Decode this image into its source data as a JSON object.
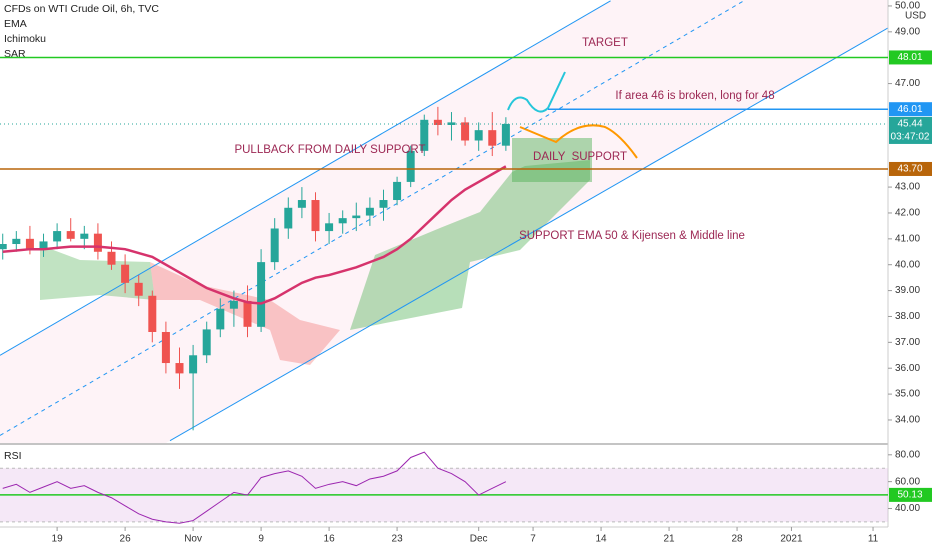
{
  "chart_data": [
    {
      "type": "candlestick",
      "title": "CFDs on WTI Crude Oil, 6h, TVC",
      "indicators": [
        "Ichimoku",
        "SAR"
      ],
      "currency": "USD",
      "countdown": "03:47:02",
      "x": [
        -4,
        -3,
        -2,
        -1,
        0,
        1,
        2,
        3,
        4,
        5,
        6,
        7,
        8,
        9,
        10,
        11,
        12,
        13,
        14,
        15,
        16,
        17,
        18,
        19,
        20,
        21,
        22,
        23,
        24,
        25,
        26,
        27,
        28,
        29,
        30,
        31,
        32,
        33
      ],
      "open": [
        40.6,
        40.8,
        41.0,
        40.6,
        40.9,
        41.3,
        41.0,
        41.2,
        40.5,
        40.0,
        39.3,
        38.8,
        37.4,
        36.2,
        35.8,
        36.5,
        37.5,
        38.3,
        38.6,
        37.6,
        40.1,
        41.4,
        42.2,
        42.5,
        41.3,
        41.6,
        41.8,
        41.9,
        42.2,
        42.5,
        43.2,
        44.4,
        45.6,
        45.4,
        45.5,
        44.8,
        45.2,
        44.6
      ],
      "high": [
        41.2,
        41.3,
        41.5,
        41.2,
        41.6,
        41.8,
        41.5,
        41.6,
        40.9,
        40.4,
        39.6,
        39.0,
        37.8,
        36.8,
        36.9,
        37.8,
        38.7,
        39.0,
        39.2,
        40.6,
        41.8,
        42.6,
        43.0,
        42.8,
        42.0,
        42.1,
        42.4,
        42.6,
        42.9,
        43.4,
        44.6,
        45.8,
        46.1,
        45.9,
        45.7,
        45.5,
        45.9,
        45.7
      ],
      "low": [
        40.2,
        40.5,
        40.4,
        40.3,
        40.6,
        40.9,
        40.6,
        40.2,
        39.8,
        38.9,
        38.4,
        37.0,
        35.8,
        35.2,
        33.6,
        36.2,
        37.2,
        37.6,
        37.2,
        37.4,
        39.8,
        41.0,
        41.8,
        40.9,
        40.8,
        41.2,
        41.3,
        41.5,
        41.7,
        42.3,
        43.0,
        44.2,
        45.0,
        44.8,
        44.6,
        44.4,
        44.2,
        44.4
      ],
      "close": [
        40.8,
        41.0,
        40.6,
        40.9,
        41.3,
        41.0,
        41.2,
        40.5,
        40.0,
        39.3,
        38.8,
        37.4,
        36.2,
        35.8,
        36.5,
        37.5,
        38.3,
        38.6,
        37.6,
        40.1,
        41.4,
        42.2,
        42.5,
        41.3,
        41.6,
        41.8,
        41.9,
        42.2,
        42.5,
        43.2,
        44.4,
        45.6,
        45.4,
        45.5,
        44.8,
        45.2,
        44.6,
        45.44
      ],
      "up_color": "#26a69a",
      "down_color": "#ef5350",
      "series": [
        {
          "name": "EMA",
          "color": "#d6336c",
          "values": [
            40.5,
            40.55,
            40.6,
            40.6,
            40.65,
            40.7,
            40.7,
            40.7,
            40.65,
            40.6,
            40.45,
            40.3,
            40.0,
            39.7,
            39.4,
            39.1,
            38.9,
            38.7,
            38.55,
            38.5,
            38.7,
            39.0,
            39.3,
            39.5,
            39.6,
            39.75,
            39.9,
            40.1,
            40.3,
            40.6,
            41.0,
            41.5,
            42.0,
            42.5,
            42.9,
            43.2,
            43.5,
            43.8
          ]
        }
      ],
      "xlim": [
        -4.2,
        61.1
      ],
      "xticks": [
        {
          "value": 0,
          "label": "19"
        },
        {
          "value": 5,
          "label": "26"
        },
        {
          "value": 10,
          "label": "Nov"
        },
        {
          "value": 15,
          "label": "9"
        },
        {
          "value": 20,
          "label": "16"
        },
        {
          "value": 25,
          "label": "23"
        },
        {
          "value": 31,
          "label": "Dec"
        },
        {
          "value": 35,
          "label": "7"
        },
        {
          "value": 40,
          "label": "14"
        },
        {
          "value": 45,
          "label": "21"
        },
        {
          "value": 50,
          "label": "28"
        },
        {
          "value": 54,
          "label": "2021"
        },
        {
          "value": 60,
          "label": "11"
        }
      ],
      "ylim": [
        33.11,
        50.23
      ],
      "yticks": [
        {
          "value": 34,
          "label": "34.00"
        },
        {
          "value": 35,
          "label": "35.00"
        },
        {
          "value": 36,
          "label": "36.00"
        },
        {
          "value": 37,
          "label": "37.00"
        },
        {
          "value": 38,
          "label": "38.00"
        },
        {
          "value": 39,
          "label": "39.00"
        },
        {
          "value": 40,
          "label": "40.00"
        },
        {
          "value": 41,
          "label": "41.00"
        },
        {
          "value": 42,
          "label": "42.00"
        },
        {
          "value": 43,
          "label": "43.00"
        },
        {
          "value": 47,
          "label": "47.00"
        },
        {
          "value": 49,
          "label": "49.00"
        },
        {
          "value": 50,
          "label": "50.00"
        }
      ],
      "levels": [
        {
          "value": 48.01,
          "color": "#22c922"
        },
        {
          "value": 46.01,
          "color": "#2196f3"
        },
        {
          "value": 43.7,
          "label": "43.70",
          "color": "#b8650a"
        }
      ],
      "channel": [
        {
          "points": [
            [
              -4.2,
              36.5
            ],
            [
              40.7,
              50.2
            ]
          ],
          "color": "#2196f3"
        },
        {
          "points": [
            [
              8.3,
              33.2
            ],
            [
              61.1,
              49.15
            ]
          ],
          "color": "#2196f3"
        },
        {
          "points": [
            [
              -4.2,
              33.4
            ],
            [
              50.5,
              50.2
            ]
          ],
          "color": "#2196f3",
          "dashed": true
        }
      ],
      "annotations": [
        {
          "text": "TARGET",
          "color": "#9c2753"
        },
        {
          "text": "If area 46 is broken, long for 48",
          "color": "#9c2753"
        },
        {
          "text": "PULLBACK FROM DAILY SUPPORT",
          "color": "#9c2753"
        },
        {
          "text": "DAILY  SUPPORT",
          "color": "#9c2753"
        },
        {
          "text": "SUPPORT EMA 50 & Kijensen & Middle line",
          "color": "#9c2753"
        }
      ]
    },
    {
      "type": "line",
      "title": "RSI",
      "color": "#9c27b0",
      "values": [
        55,
        58,
        52,
        56,
        60,
        55,
        57,
        52,
        48,
        42,
        36,
        32,
        30,
        29,
        31,
        38,
        45,
        52,
        50,
        63,
        66,
        68,
        64,
        55,
        58,
        60,
        57,
        62,
        64,
        68,
        78,
        82,
        70,
        66,
        60,
        50,
        55,
        60
      ],
      "ylim": [
        26.2,
        87.3
      ],
      "yticks": [
        {
          "value": 40,
          "label": "40.00"
        },
        {
          "value": 60,
          "label": "60.00"
        },
        {
          "value": 80,
          "label": "80.00"
        }
      ],
      "band": [
        30,
        70
      ],
      "levels": [
        {
          "value": 50.13,
          "color": "#22c922"
        }
      ]
    }
  ]
}
